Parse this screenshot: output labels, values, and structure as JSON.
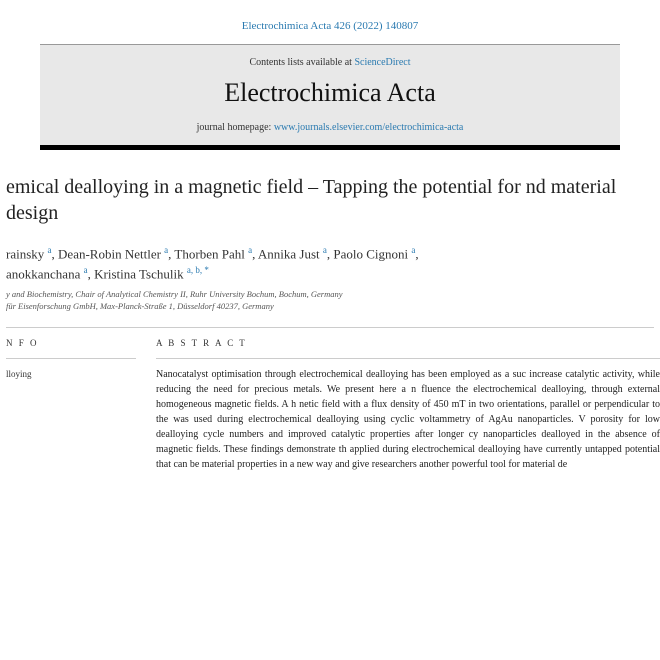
{
  "citation": "Electrochimica Acta 426 (2022) 140807",
  "contents_prefix": "Contents lists available at ",
  "contents_link": "ScienceDirect",
  "journal_title": "Electrochimica Acta",
  "homepage_prefix": "journal homepage: ",
  "homepage_link": "www.journals.elsevier.com/electrochimica-acta",
  "title": "emical dealloying in a magnetic field – Tapping the potential for nd material design",
  "authors_line1": "rainsky ",
  "author2": ", Dean-Robin Nettler ",
  "author3": ", Thorben Pahl ",
  "author4": ", Annika Just ",
  "author5": ", Paolo Cignoni ",
  "authors_line2": "anokkanchana ",
  "author6": ", Kristina Tschulik ",
  "sup_a": "a",
  "sup_abstar": "a, b, *",
  "affil1": "y and Biochemistry, Chair of Analytical Chemistry II, Ruhr University Bochum, Bochum, Germany",
  "affil2": "für Eisenforschung GmbH, Max-Planck-Straße 1, Düsseldorf 40237, Germany",
  "info_head": "N F O",
  "keyword": "lloying",
  "abstract_head": "A B S T R A C T",
  "abstract": "Nanocatalyst optimisation through electrochemical dealloying has been employed as a suc increase catalytic activity, while reducing the need for precious metals. We present here a n fluence the electrochemical dealloying, through external homogeneous magnetic fields. A h netic field with a flux density of 450 mT in two orientations, parallel or perpendicular to the was used during electrochemical dealloying using cyclic voltammetry of AgAu nanoparticles. V porosity for low dealloying cycle numbers and improved catalytic properties after longer cy nanoparticles dealloyed in the absence of magnetic fields. These findings demonstrate th applied during electrochemical dealloying have currently untapped potential that can be material properties in a new way and give researchers another powerful tool for material de"
}
